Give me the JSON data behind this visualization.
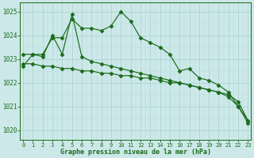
{
  "x": [
    0,
    1,
    2,
    3,
    4,
    5,
    6,
    7,
    8,
    9,
    10,
    11,
    12,
    13,
    14,
    15,
    16,
    17,
    18,
    19,
    20,
    21,
    22,
    23
  ],
  "line1": [
    1022.7,
    1023.2,
    1023.2,
    1023.9,
    1023.9,
    1024.7,
    1024.3,
    1024.3,
    1024.2,
    1024.4,
    1025.0,
    1024.6,
    1023.9,
    1023.7,
    1023.5,
    1023.2,
    1022.5,
    1022.6,
    1022.2,
    1022.1,
    1021.9,
    1021.6,
    1021.0,
    1020.3
  ],
  "line2": [
    1023.2,
    1023.2,
    1023.1,
    1024.0,
    1023.2,
    1024.9,
    1023.1,
    1022.9,
    1022.8,
    1022.7,
    1022.6,
    1022.5,
    1022.4,
    1022.3,
    1022.2,
    1022.1,
    1022.0,
    1021.9,
    1021.8,
    1021.7,
    1021.6,
    1021.4,
    1021.0,
    1020.4
  ],
  "line3": [
    1022.8,
    1022.8,
    1022.7,
    1022.7,
    1022.6,
    1022.6,
    1022.5,
    1022.5,
    1022.4,
    1022.4,
    1022.3,
    1022.3,
    1022.2,
    1022.2,
    1022.1,
    1022.0,
    1022.0,
    1021.9,
    1021.8,
    1021.7,
    1021.6,
    1021.5,
    1021.2,
    1020.4
  ],
  "ylim": [
    1019.6,
    1025.4
  ],
  "yticks": [
    1020,
    1021,
    1022,
    1023,
    1024,
    1025
  ],
  "xticks": [
    0,
    1,
    2,
    3,
    4,
    5,
    6,
    7,
    8,
    9,
    10,
    11,
    12,
    13,
    14,
    15,
    16,
    17,
    18,
    19,
    20,
    21,
    22,
    23
  ],
  "xlabel": "Graphe pression niveau de la mer (hPa)",
  "line_color": "#1a6b1a",
  "bg_color": "#cce8e8",
  "grid_major_color": "#aad0d0",
  "grid_minor_color": "#bddede",
  "marker": "D",
  "marker_size": 2.5,
  "lw": 0.85
}
